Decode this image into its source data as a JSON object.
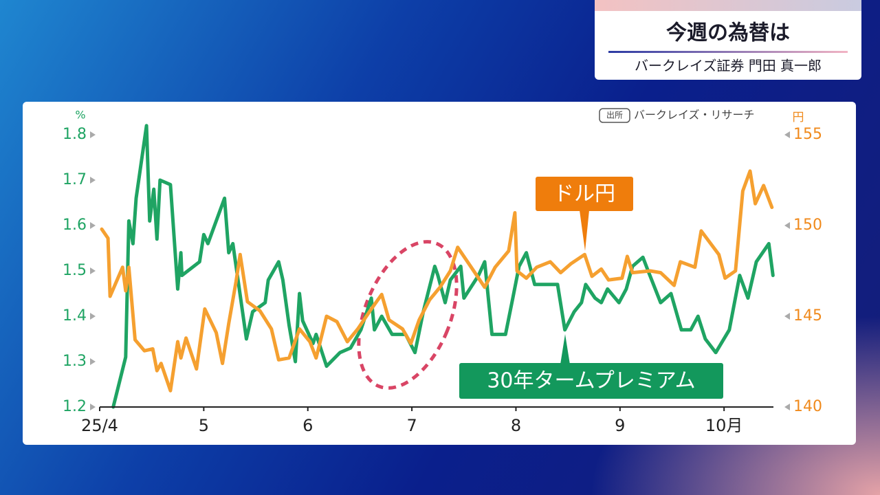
{
  "header": {
    "title": "今週の為替は",
    "subtitle": "バークレイズ証券 門田 真一郎"
  },
  "chart_data": {
    "type": "line",
    "source_tag": "出所",
    "source": "バークレイズ・リサーチ",
    "y_label": "%",
    "y2_label": "円",
    "xlim": [
      4,
      10.6
    ],
    "xticks": [
      {
        "value": 4,
        "label": "25/4"
      },
      5,
      6,
      7,
      8,
      9,
      {
        "value": 10,
        "label": "10月"
      }
    ],
    "ylim": [
      1.2,
      1.8
    ],
    "yticks": [
      1.2,
      1.3,
      1.4,
      1.5,
      1.6,
      1.7,
      1.8
    ],
    "y2lim": [
      140,
      155
    ],
    "y2ticks": [
      140,
      145,
      150,
      155
    ],
    "grid": false,
    "series": [
      {
        "name": "30年タームプレミアム",
        "color": "#1fa463",
        "x": [
          4.13,
          4.25,
          4.28,
          4.32,
          4.35,
          4.45,
          4.48,
          4.52,
          4.55,
          4.58,
          4.68,
          4.75,
          4.78,
          4.79,
          4.96,
          5.0,
          5.04,
          5.2,
          5.24,
          5.28,
          5.41,
          5.47,
          5.59,
          5.62,
          5.67,
          5.72,
          5.76,
          5.82,
          5.88,
          5.92,
          5.95,
          6.05,
          6.08,
          6.18,
          6.31,
          6.41,
          6.51,
          6.61,
          6.64,
          6.71,
          6.81,
          6.94,
          7.03,
          7.11,
          7.22,
          7.25,
          7.32,
          7.37,
          7.47,
          7.5,
          7.64,
          7.7,
          7.77,
          7.9,
          7.97,
          8.03,
          8.1,
          8.18,
          8.3,
          8.4,
          8.47,
          8.56,
          8.63,
          8.67,
          8.76,
          8.82,
          8.88,
          8.99,
          9.06,
          9.12,
          9.22,
          9.27,
          9.39,
          9.49,
          9.59,
          9.68,
          9.75,
          9.82,
          9.92,
          10.05,
          10.15,
          10.23,
          10.31,
          10.43,
          10.47
        ],
        "values": [
          1.2,
          1.31,
          1.61,
          1.56,
          1.66,
          1.82,
          1.61,
          1.68,
          1.57,
          1.7,
          1.69,
          1.46,
          1.54,
          1.49,
          1.52,
          1.58,
          1.56,
          1.66,
          1.54,
          1.56,
          1.35,
          1.41,
          1.43,
          1.48,
          1.5,
          1.52,
          1.48,
          1.38,
          1.3,
          1.45,
          1.39,
          1.34,
          1.36,
          1.29,
          1.32,
          1.33,
          1.37,
          1.44,
          1.37,
          1.4,
          1.36,
          1.36,
          1.32,
          1.41,
          1.51,
          1.49,
          1.43,
          1.48,
          1.51,
          1.44,
          1.49,
          1.52,
          1.36,
          1.36,
          1.44,
          1.51,
          1.54,
          1.47,
          1.47,
          1.47,
          1.37,
          1.41,
          1.43,
          1.47,
          1.44,
          1.43,
          1.46,
          1.43,
          1.46,
          1.51,
          1.53,
          1.5,
          1.43,
          1.45,
          1.37,
          1.37,
          1.4,
          1.35,
          1.32,
          1.37,
          1.49,
          1.44,
          1.52,
          1.56,
          1.49
        ]
      },
      {
        "name": "ドル円",
        "color": "#f5a030",
        "axis": "y2",
        "x": [
          4.02,
          4.08,
          4.1,
          4.22,
          4.25,
          4.28,
          4.34,
          4.43,
          4.51,
          4.55,
          4.59,
          4.68,
          4.75,
          4.78,
          4.83,
          4.93,
          5.01,
          5.12,
          5.18,
          5.24,
          5.31,
          5.35,
          5.42,
          5.54,
          5.65,
          5.72,
          5.82,
          5.92,
          6.02,
          6.08,
          6.18,
          6.28,
          6.38,
          6.48,
          6.61,
          6.71,
          6.78,
          6.91,
          6.99,
          7.07,
          7.17,
          7.27,
          7.37,
          7.44,
          7.57,
          7.7,
          7.8,
          7.93,
          7.99,
          8.01,
          8.1,
          8.2,
          8.33,
          8.43,
          8.53,
          8.66,
          8.73,
          8.82,
          8.89,
          9.02,
          9.07,
          9.12,
          9.29,
          9.39,
          9.52,
          9.58,
          9.72,
          9.78,
          9.95,
          10.01,
          10.11,
          10.18,
          10.25,
          10.3,
          10.38,
          10.46
        ],
        "values": [
          149.8,
          149.3,
          146.1,
          147.7,
          146.4,
          147.7,
          143.7,
          143.1,
          143.2,
          142.0,
          142.4,
          140.9,
          143.6,
          142.7,
          143.8,
          142.1,
          145.4,
          144.1,
          142.4,
          144.6,
          146.9,
          148.4,
          145.8,
          145.3,
          144.3,
          142.6,
          142.7,
          144.3,
          143.6,
          142.7,
          145.0,
          144.7,
          143.6,
          144.3,
          145.4,
          146.2,
          144.8,
          144.3,
          143.5,
          144.8,
          145.9,
          146.6,
          147.5,
          148.8,
          147.7,
          146.6,
          147.7,
          148.6,
          150.7,
          147.5,
          147.1,
          147.7,
          148.0,
          147.4,
          147.9,
          148.4,
          147.2,
          147.6,
          147.0,
          147.1,
          148.3,
          147.4,
          147.5,
          147.4,
          146.7,
          148.0,
          147.7,
          149.7,
          148.4,
          147.1,
          147.5,
          151.9,
          153.0,
          151.2,
          152.2,
          151.0
        ]
      }
    ]
  }
}
